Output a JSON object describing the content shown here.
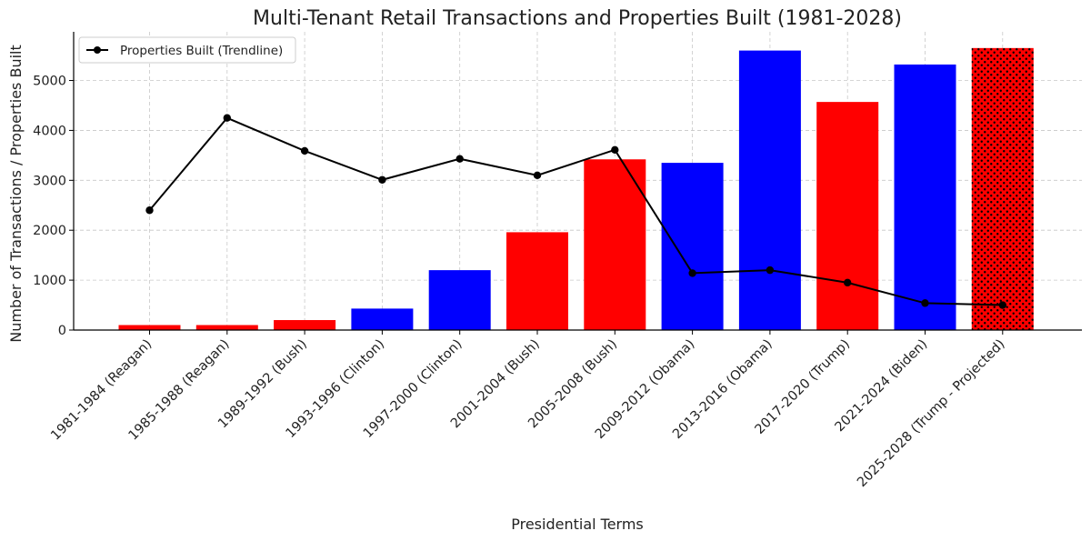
{
  "chart_data": {
    "type": "bar",
    "title": "Multi-Tenant Retail Transactions and Properties Built (1981-2028)",
    "xlabel": "Presidential Terms",
    "ylabel": "Number of Transactions / Properties Built",
    "ylim": [
      0,
      6000
    ],
    "yticks": [
      0,
      1000,
      2000,
      3000,
      4000,
      5000
    ],
    "grid": true,
    "legend_position": "top-left",
    "categories": [
      "1981-1984 (Reagan)",
      "1985-1988 (Reagan)",
      "1989-1992 (Bush)",
      "1993-1996 (Clinton)",
      "1997-2000 (Clinton)",
      "2001-2004 (Bush)",
      "2005-2008 (Bush)",
      "2009-2012 (Obama)",
      "2013-2016 (Obama)",
      "2017-2020 (Trump)",
      "2021-2024 (Biden)",
      "2025-2028 (Trump - Projected)"
    ],
    "series": [
      {
        "kind": "bar",
        "values": [
          100,
          100,
          200,
          430,
          1200,
          1960,
          3420,
          3350,
          5600,
          4570,
          5320,
          5650
        ],
        "colors": [
          "#ff0000",
          "#ff0000",
          "#ff0000",
          "#0000ff",
          "#0000ff",
          "#ff0000",
          "#ff0000",
          "#0000ff",
          "#0000ff",
          "#ff0000",
          "#0000ff",
          "#ff0000"
        ],
        "hatched": [
          false,
          false,
          false,
          false,
          false,
          false,
          false,
          false,
          false,
          false,
          false,
          true
        ]
      },
      {
        "kind": "line",
        "name": "Properties Built (Trendline)",
        "color": "#000000",
        "values": [
          2400,
          4250,
          3590,
          3010,
          3430,
          3100,
          3610,
          1140,
          1200,
          950,
          540,
          500
        ]
      }
    ]
  }
}
